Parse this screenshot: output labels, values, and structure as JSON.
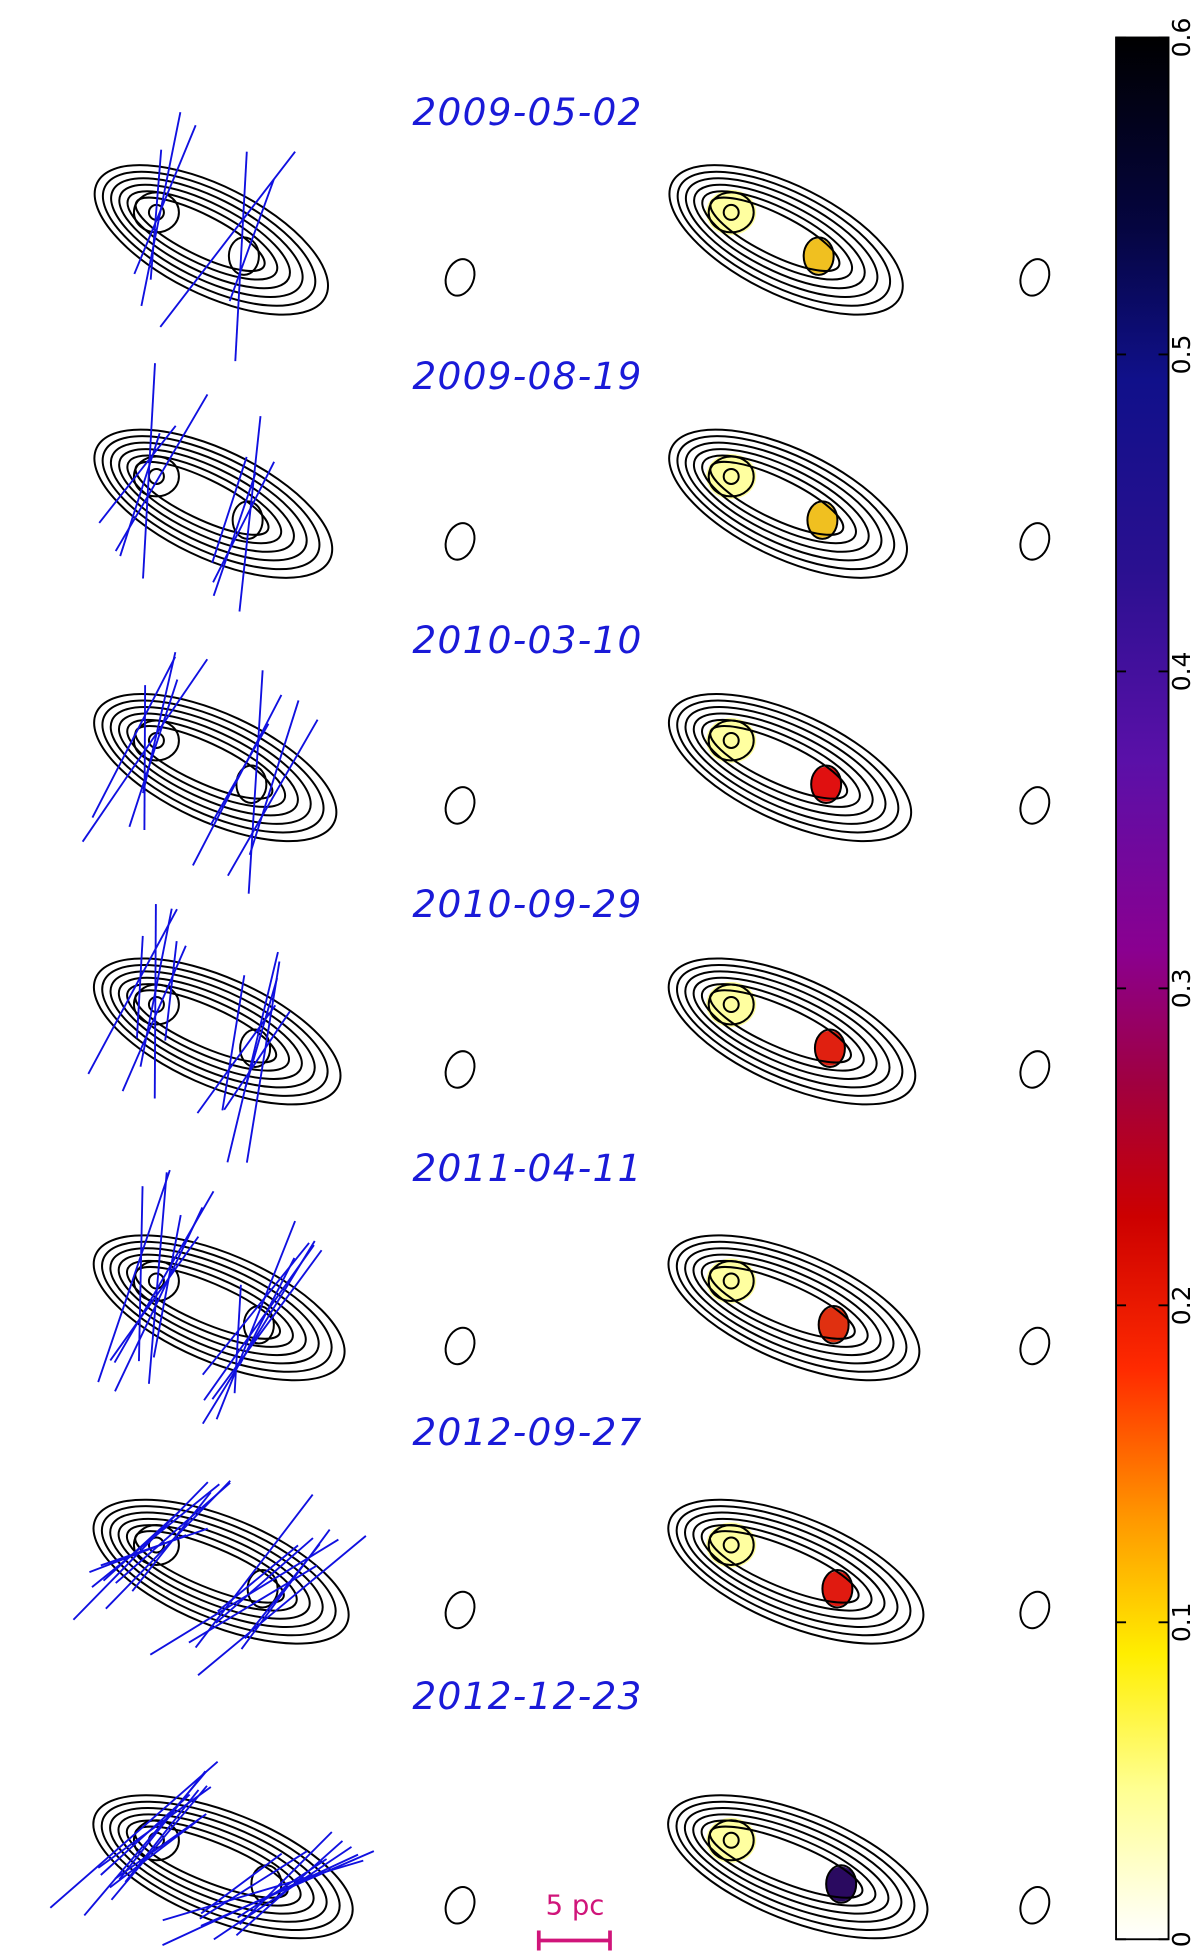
{
  "epochs": [
    "2009-05-02",
    "2009-08-19",
    "2010-03-10",
    "2010-09-29",
    "2011-04-11",
    "2012-09-27",
    "2012-12-23"
  ],
  "scale_bar": {
    "label": "5 pc"
  },
  "colorbar": {
    "lim": [
      0,
      0.6
    ],
    "ticks": [
      0,
      0.1,
      0.2,
      0.3,
      0.4,
      0.5,
      0.6
    ]
  }
}
